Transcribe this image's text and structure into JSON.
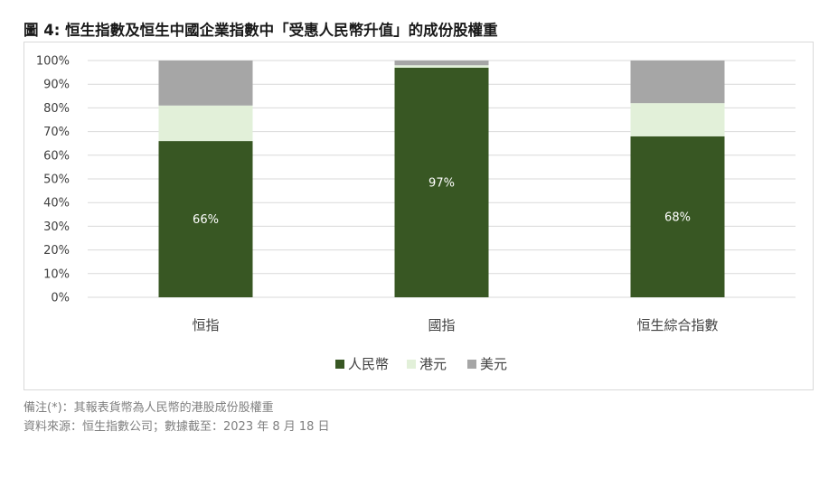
{
  "title": "圖 4:  恒生指數及恒生中國企業指數中「受惠人民幣升值」的成份股權重",
  "footnote": "備注(*)：其報表貨幣為人民幣的港股成份股權重",
  "source": "資料來源：恒生指數公司；數據截至：2023 年 8 月 18 日",
  "colors": {
    "rmb": "#385723",
    "hkd": "#e2f0d9",
    "usd": "#a6a6a6",
    "grid": "#d9d9d9",
    "label_on_bar": "#ffffff"
  },
  "chart_data": {
    "type": "bar",
    "stacked": true,
    "categories": [
      "恒指",
      "國指",
      "恒生綜合指數"
    ],
    "series": [
      {
        "name": "人民幣",
        "values": [
          66,
          97,
          68
        ],
        "labels": [
          "66%",
          "97%",
          "68%"
        ]
      },
      {
        "name": "港元",
        "values": [
          15,
          1,
          14
        ]
      },
      {
        "name": "美元",
        "values": [
          19,
          2,
          18
        ]
      }
    ],
    "yticks": [
      "0%",
      "10%",
      "20%",
      "30%",
      "40%",
      "50%",
      "60%",
      "70%",
      "80%",
      "90%",
      "100%"
    ],
    "ylim": [
      0,
      100
    ],
    "grid": true,
    "legend": "bottom"
  }
}
